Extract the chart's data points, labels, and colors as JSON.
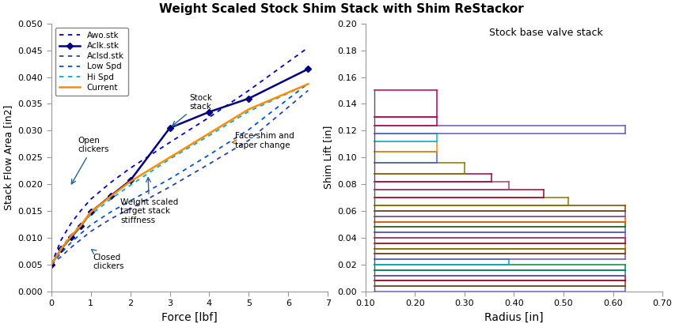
{
  "title": "Weight Scaled Stock Shim Stack with Shim ReStackor",
  "left": {
    "xlabel": "Force [lbf]",
    "ylabel": "Stack Flow Area [in2]",
    "xlim": [
      0,
      7
    ],
    "ylim": [
      0.0,
      0.05
    ],
    "yticks": [
      0.0,
      0.005,
      0.01,
      0.015,
      0.02,
      0.025,
      0.03,
      0.035,
      0.04,
      0.045,
      0.05
    ],
    "xticks": [
      0,
      1,
      2,
      3,
      4,
      5,
      6,
      7
    ],
    "legend_labels": [
      "Awo.stk",
      "Aclk.stk",
      "Aclsd.stk",
      "Low Spd",
      "Hi Spd",
      "Current"
    ],
    "awo_stk_x": [
      0.0,
      0.25,
      0.5,
      0.75,
      1.0,
      1.5,
      2.0,
      3.0,
      4.0,
      5.0,
      6.5
    ],
    "awo_stk_y": [
      0.005,
      0.0096,
      0.0127,
      0.0151,
      0.0172,
      0.0203,
      0.023,
      0.0278,
      0.0325,
      0.0375,
      0.0455
    ],
    "aclk_stk_x": [
      0.0,
      0.25,
      0.5,
      0.75,
      1.0,
      1.5,
      2.0,
      3.0,
      4.0,
      5.0,
      6.5
    ],
    "aclk_stk_y": [
      0.005,
      0.0079,
      0.0101,
      0.0122,
      0.0148,
      0.0178,
      0.0207,
      0.0305,
      0.0335,
      0.036,
      0.0415
    ],
    "aclsd_stk_x": [
      0.0,
      0.25,
      0.5,
      0.75,
      1.0,
      1.5,
      2.0,
      3.0,
      4.0,
      5.0,
      6.5
    ],
    "aclsd_stk_y": [
      0.005,
      0.0065,
      0.0082,
      0.0097,
      0.0112,
      0.0135,
      0.0155,
      0.0195,
      0.0238,
      0.0282,
      0.0375
    ],
    "low_spd_x": [
      0.0,
      0.25,
      0.5,
      0.75,
      1.0,
      1.5,
      2.0,
      3.0,
      4.0,
      5.0,
      6.5
    ],
    "low_spd_y": [
      0.005,
      0.0072,
      0.0091,
      0.0108,
      0.0124,
      0.0148,
      0.0169,
      0.021,
      0.0255,
      0.0302,
      0.0388
    ],
    "hi_spd_x": [
      0.0,
      0.25,
      0.5,
      0.75,
      1.0,
      1.5,
      2.0,
      3.0,
      4.0,
      5.0,
      6.5
    ],
    "hi_spd_y": [
      0.005,
      0.0081,
      0.0105,
      0.0125,
      0.0143,
      0.0172,
      0.0198,
      0.0247,
      0.0291,
      0.0336,
      0.0387
    ],
    "current_x": [
      0.0,
      0.25,
      0.5,
      0.75,
      1.0,
      1.5,
      2.0,
      3.0,
      4.0,
      5.0,
      6.5
    ],
    "current_y": [
      0.005,
      0.0079,
      0.0103,
      0.0123,
      0.0148,
      0.0177,
      0.0205,
      0.025,
      0.0295,
      0.034,
      0.0387
    ],
    "awo_color": "#0000CC",
    "aclk_color": "#000080",
    "aclsd_color": "#2244AA",
    "low_color": "#0055CC",
    "hi_color": "#00AADD",
    "current_color": "#FF8C00"
  },
  "right": {
    "xlabel": "Radius [in]",
    "ylabel": "Shim Lift [in]",
    "xlim": [
      0.1,
      0.7
    ],
    "ylim": [
      0.0,
      0.2
    ],
    "yticks": [
      0.0,
      0.02,
      0.04,
      0.06,
      0.08,
      0.1,
      0.12,
      0.14,
      0.16,
      0.18,
      0.2
    ],
    "xticks": [
      0.1,
      0.2,
      0.3,
      0.4,
      0.5,
      0.6,
      0.7
    ],
    "subtitle": "Stock base valve stack",
    "r_base": 0.118,
    "shims": [
      {
        "r_outer": 0.625,
        "thickness": 0.004,
        "color": "#6655BB"
      },
      {
        "r_outer": 0.625,
        "thickness": 0.004,
        "color": "#774400"
      },
      {
        "r_outer": 0.625,
        "thickness": 0.004,
        "color": "#AA0033"
      },
      {
        "r_outer": 0.625,
        "thickness": 0.004,
        "color": "#4466BB"
      },
      {
        "r_outer": 0.625,
        "thickness": 0.004,
        "color": "#008844"
      },
      {
        "r_outer": 0.39,
        "thickness": 0.004,
        "color": "#00AACC"
      },
      {
        "r_outer": 0.625,
        "thickness": 0.004,
        "color": "#6655BB"
      },
      {
        "r_outer": 0.625,
        "thickness": 0.004,
        "color": "#774400"
      },
      {
        "r_outer": 0.625,
        "thickness": 0.004,
        "color": "#887700"
      },
      {
        "r_outer": 0.625,
        "thickness": 0.004,
        "color": "#AA0033"
      },
      {
        "r_outer": 0.625,
        "thickness": 0.004,
        "color": "#994477"
      },
      {
        "r_outer": 0.625,
        "thickness": 0.004,
        "color": "#4466BB"
      },
      {
        "r_outer": 0.625,
        "thickness": 0.004,
        "color": "#336600"
      },
      {
        "r_outer": 0.625,
        "thickness": 0.004,
        "color": "#FF5500"
      },
      {
        "r_outer": 0.625,
        "thickness": 0.004,
        "color": "#6655BB"
      },
      {
        "r_outer": 0.625,
        "thickness": 0.004,
        "color": "#774400"
      },
      {
        "r_outer": 0.51,
        "thickness": 0.006,
        "color": "#887700"
      },
      {
        "r_outer": 0.46,
        "thickness": 0.006,
        "color": "#AA0033"
      },
      {
        "r_outer": 0.39,
        "thickness": 0.006,
        "color": "#994477"
      },
      {
        "r_outer": 0.355,
        "thickness": 0.006,
        "color": "#AA0033"
      },
      {
        "r_outer": 0.3,
        "thickness": 0.008,
        "color": "#887700"
      },
      {
        "r_outer": 0.245,
        "thickness": 0.008,
        "color": "#4466BB"
      },
      {
        "r_outer": 0.245,
        "thickness": 0.008,
        "color": "#FF8800"
      },
      {
        "r_outer": 0.245,
        "thickness": 0.006,
        "color": "#00BBDD"
      },
      {
        "r_outer": 0.625,
        "thickness": 0.006,
        "color": "#6655BB"
      },
      {
        "r_outer": 0.245,
        "thickness": 0.006,
        "color": "#BB0055"
      },
      {
        "r_outer": 0.245,
        "thickness": 0.02,
        "color": "#BB0055"
      }
    ]
  }
}
